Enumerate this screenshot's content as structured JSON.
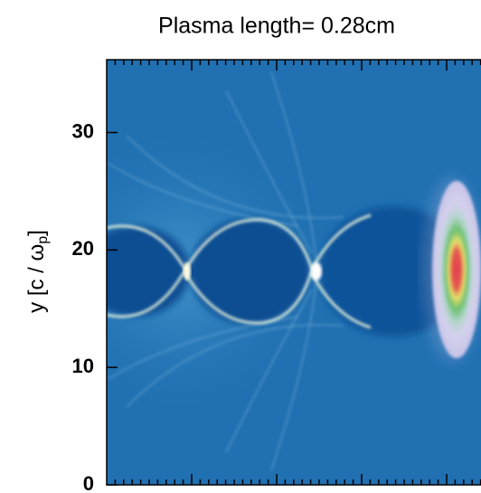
{
  "chart_data": {
    "type": "heatmap",
    "title": "Plasma length= 0.28cm",
    "ylabel": {
      "main": "y [c / ω",
      "sub": "p",
      "end": "]"
    },
    "ylim": [
      0,
      36.2
    ],
    "yticks": [
      0,
      10,
      20,
      30
    ]
  }
}
